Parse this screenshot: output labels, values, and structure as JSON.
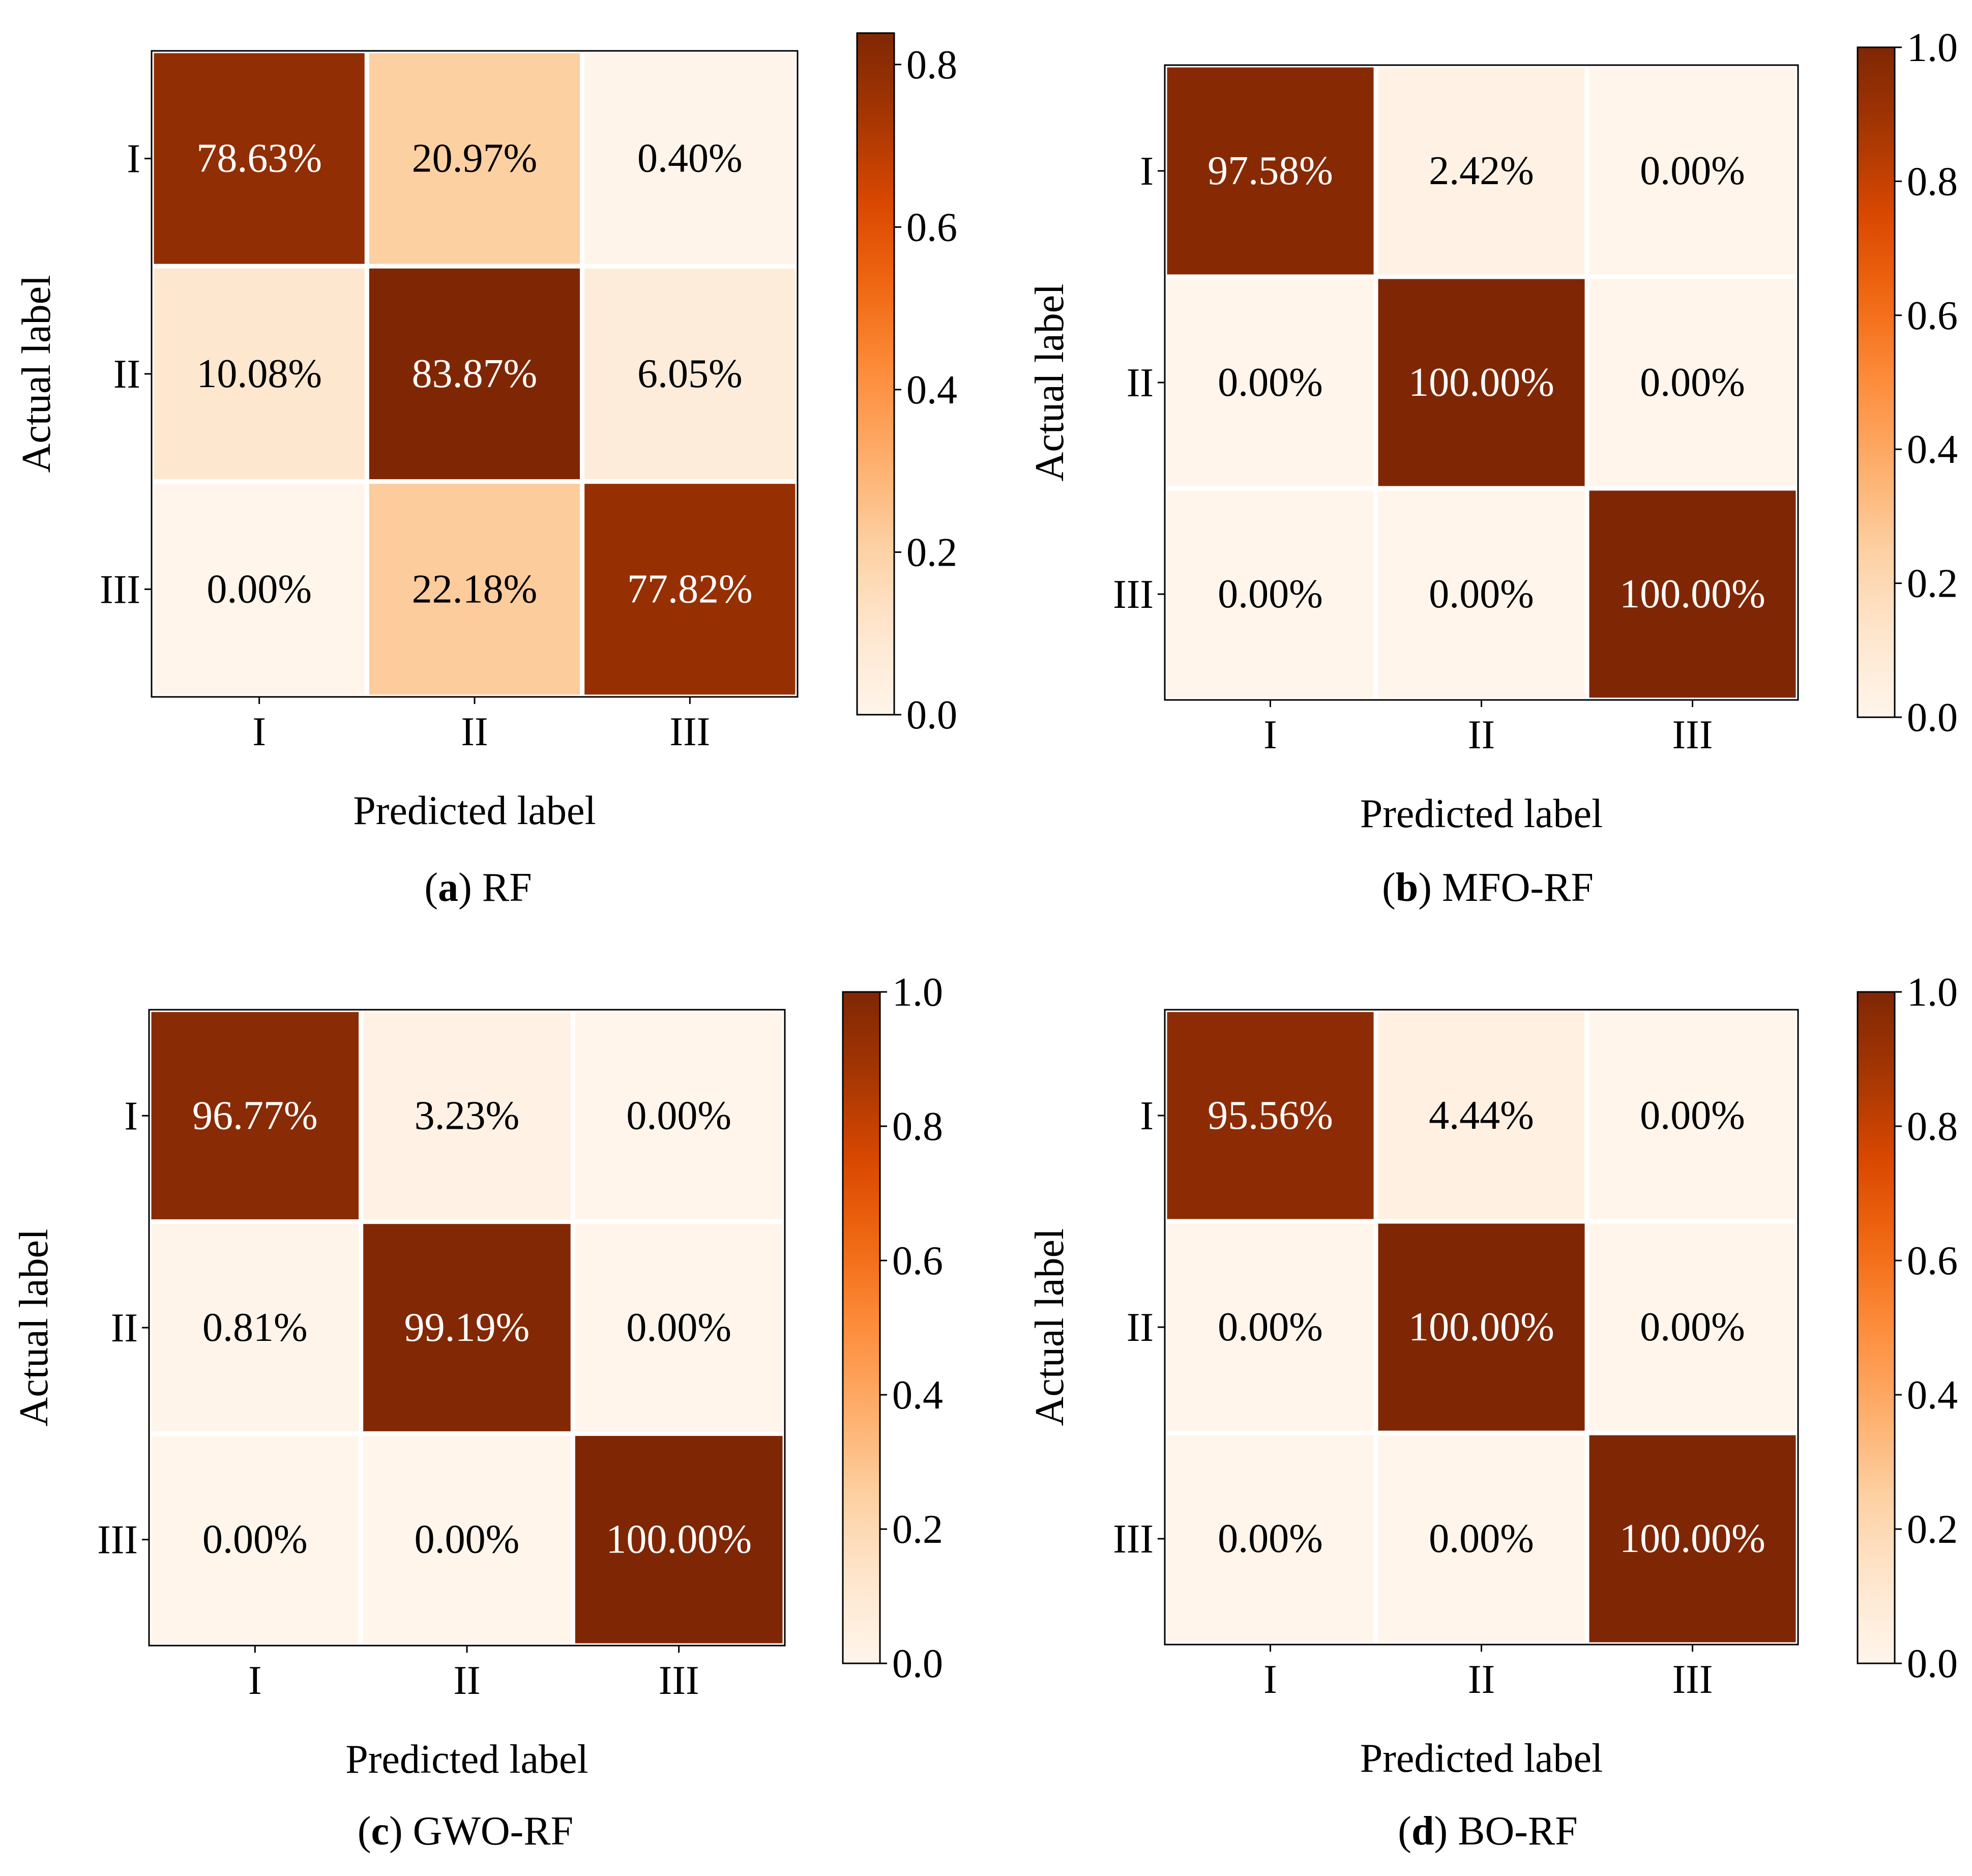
{
  "chart_data": [
    {
      "type": "heatmap",
      "caption_letter": "a",
      "caption_name": "RF",
      "xlabel": "Predicted label",
      "ylabel": "Actual label",
      "x_categories": [
        "I",
        "II",
        "III"
      ],
      "y_categories": [
        "I",
        "II",
        "III"
      ],
      "values": [
        [
          0.7863,
          0.2097,
          0.004
        ],
        [
          0.1008,
          0.8387,
          0.0605
        ],
        [
          0.0,
          0.2218,
          0.7782
        ]
      ],
      "labels": [
        [
          "78.63%",
          "20.97%",
          "0.40%"
        ],
        [
          "10.08%",
          "83.87%",
          "6.05%"
        ],
        [
          "0.00%",
          "22.18%",
          "77.82%"
        ]
      ],
      "colorbar_range": [
        0,
        0.8387
      ],
      "colorbar_ticks": [
        0.0,
        0.2,
        0.4,
        0.6,
        0.8
      ],
      "colorbar_tick_labels": [
        "0.0",
        "0.2",
        "0.4",
        "0.6",
        "0.8"
      ]
    },
    {
      "type": "heatmap",
      "caption_letter": "b",
      "caption_name": "MFO-RF",
      "xlabel": "Predicted label",
      "ylabel": "Actual label",
      "x_categories": [
        "I",
        "II",
        "III"
      ],
      "y_categories": [
        "I",
        "II",
        "III"
      ],
      "values": [
        [
          0.9758,
          0.0242,
          0.0
        ],
        [
          0.0,
          1.0,
          0.0
        ],
        [
          0.0,
          0.0,
          1.0
        ]
      ],
      "labels": [
        [
          "97.58%",
          "2.42%",
          "0.00%"
        ],
        [
          "0.00%",
          "100.00%",
          "0.00%"
        ],
        [
          "0.00%",
          "0.00%",
          "100.00%"
        ]
      ],
      "colorbar_range": [
        0,
        1.0
      ],
      "colorbar_ticks": [
        0.0,
        0.2,
        0.4,
        0.6,
        0.8,
        1.0
      ],
      "colorbar_tick_labels": [
        "0.0",
        "0.2",
        "0.4",
        "0.6",
        "0.8",
        "1.0"
      ]
    },
    {
      "type": "heatmap",
      "caption_letter": "c",
      "caption_name": "GWO-RF",
      "xlabel": "Predicted label",
      "ylabel": "Actual label",
      "x_categories": [
        "I",
        "II",
        "III"
      ],
      "y_categories": [
        "I",
        "II",
        "III"
      ],
      "values": [
        [
          0.9677,
          0.0323,
          0.0
        ],
        [
          0.0081,
          0.9919,
          0.0
        ],
        [
          0.0,
          0.0,
          1.0
        ]
      ],
      "labels": [
        [
          "96.77%",
          "3.23%",
          "0.00%"
        ],
        [
          "0.81%",
          "99.19%",
          "0.00%"
        ],
        [
          "0.00%",
          "0.00%",
          "100.00%"
        ]
      ],
      "colorbar_range": [
        0,
        1.0
      ],
      "colorbar_ticks": [
        0.0,
        0.2,
        0.4,
        0.6,
        0.8,
        1.0
      ],
      "colorbar_tick_labels": [
        "0.0",
        "0.2",
        "0.4",
        "0.6",
        "0.8",
        "1.0"
      ]
    },
    {
      "type": "heatmap",
      "caption_letter": "d",
      "caption_name": "BO-RF",
      "xlabel": "Predicted label",
      "ylabel": "Actual label",
      "x_categories": [
        "I",
        "II",
        "III"
      ],
      "y_categories": [
        "I",
        "II",
        "III"
      ],
      "values": [
        [
          0.9556,
          0.0444,
          0.0
        ],
        [
          0.0,
          1.0,
          0.0
        ],
        [
          0.0,
          0.0,
          1.0
        ]
      ],
      "labels": [
        [
          "95.56%",
          "4.44%",
          "0.00%"
        ],
        [
          "0.00%",
          "100.00%",
          "0.00%"
        ],
        [
          "0.00%",
          "0.00%",
          "100.00%"
        ]
      ],
      "colorbar_range": [
        0,
        1.0
      ],
      "colorbar_ticks": [
        0.0,
        0.2,
        0.4,
        0.6,
        0.8,
        1.0
      ],
      "colorbar_tick_labels": [
        "0.0",
        "0.2",
        "0.4",
        "0.6",
        "0.8",
        "1.0"
      ]
    }
  ],
  "colormap": {
    "name": "Oranges",
    "stops": [
      "#fff5eb",
      "#fee6ce",
      "#fdd0a2",
      "#fdae6b",
      "#fd8d3c",
      "#f16913",
      "#d94801",
      "#a63603",
      "#7f2704"
    ]
  }
}
